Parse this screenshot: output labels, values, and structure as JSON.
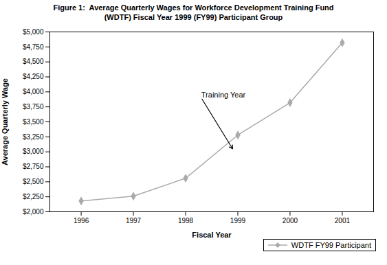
{
  "chart_data": {
    "type": "line",
    "title": "Figure 1:  Average Quarterly Wages for Workforce Development Training Fund",
    "subtitle": "(WDTF) Fiscal Year 1999 (FY99) Participant Group",
    "x_label": "Fiscal Year",
    "y_label": "Average Quarterly Wage",
    "x": [
      1996,
      1997,
      1998,
      1999,
      2000,
      2001
    ],
    "series": [
      {
        "name": "WDTF FY99 Participant",
        "color": "#aaaaaa",
        "marker": "diamond",
        "values": [
          2180,
          2260,
          2560,
          3280,
          3820,
          4820
        ]
      }
    ],
    "xlim": [
      1995.4,
      2001.6
    ],
    "xticks": [
      1996,
      1997,
      1998,
      1999,
      2000,
      2001
    ],
    "ylim": [
      2000,
      5000
    ],
    "yticks": [
      {
        "value": 2000,
        "label": "$2,000"
      },
      {
        "value": 2250,
        "label": "$2,250"
      },
      {
        "value": 2500,
        "label": "$2,500"
      },
      {
        "value": 2750,
        "label": "$2,750"
      },
      {
        "value": 3000,
        "label": "$3,000"
      },
      {
        "value": 3250,
        "label": "$3,250"
      },
      {
        "value": 3500,
        "label": "$3,500"
      },
      {
        "value": 3750,
        "label": "$3,750"
      },
      {
        "value": 4000,
        "label": "$4,000"
      },
      {
        "value": 4250,
        "label": "$4,250"
      },
      {
        "value": 4500,
        "label": "$4,500"
      },
      {
        "value": 4750,
        "label": "$4,750"
      },
      {
        "value": 5000,
        "label": "$5,000"
      }
    ],
    "annotations": [
      {
        "text": "Training Year",
        "x": 1998.9,
        "y": 3050,
        "text_x": 1998.3,
        "text_y": 3900
      }
    ],
    "grid": false,
    "legend": "lower right"
  }
}
